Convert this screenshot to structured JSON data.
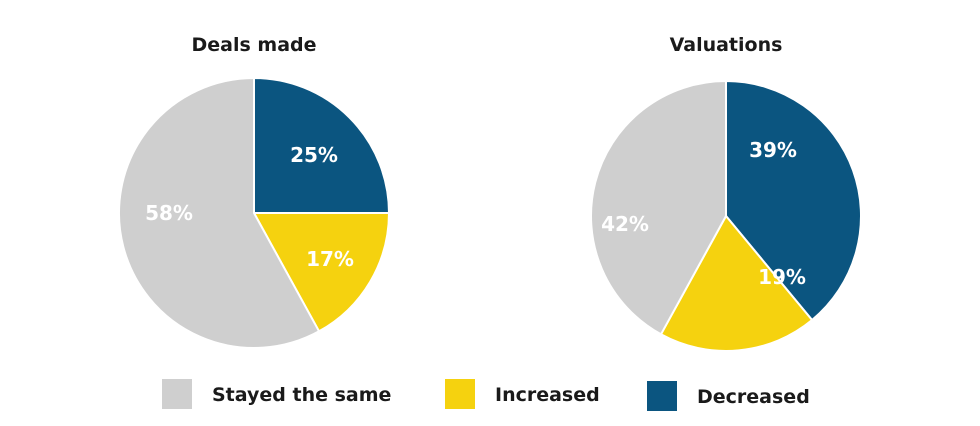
{
  "legend": {
    "items": [
      {
        "label": "Stayed the same",
        "color": "#cfcfcf"
      },
      {
        "label": "Increased",
        "color": "#f5d20f"
      },
      {
        "label": "Decreased",
        "color": "#0b5580"
      }
    ]
  },
  "chart_data": [
    {
      "type": "pie",
      "title": "Deals made",
      "slices": [
        {
          "label": "Decreased",
          "value": 25,
          "display": "25%",
          "color": "#0b5580"
        },
        {
          "label": "Increased",
          "value": 17,
          "display": "17%",
          "color": "#f5d20f"
        },
        {
          "label": "Stayed the same",
          "value": 58,
          "display": "58%",
          "color": "#cfcfcf"
        }
      ]
    },
    {
      "type": "pie",
      "title": "Valuations",
      "slices": [
        {
          "label": "Decreased",
          "value": 39,
          "display": "39%",
          "color": "#0b5580"
        },
        {
          "label": "Increased",
          "value": 19,
          "display": "19%",
          "color": "#f5d20f"
        },
        {
          "label": "Stayed the same",
          "value": 42,
          "display": "42%",
          "color": "#cfcfcf"
        }
      ]
    }
  ]
}
